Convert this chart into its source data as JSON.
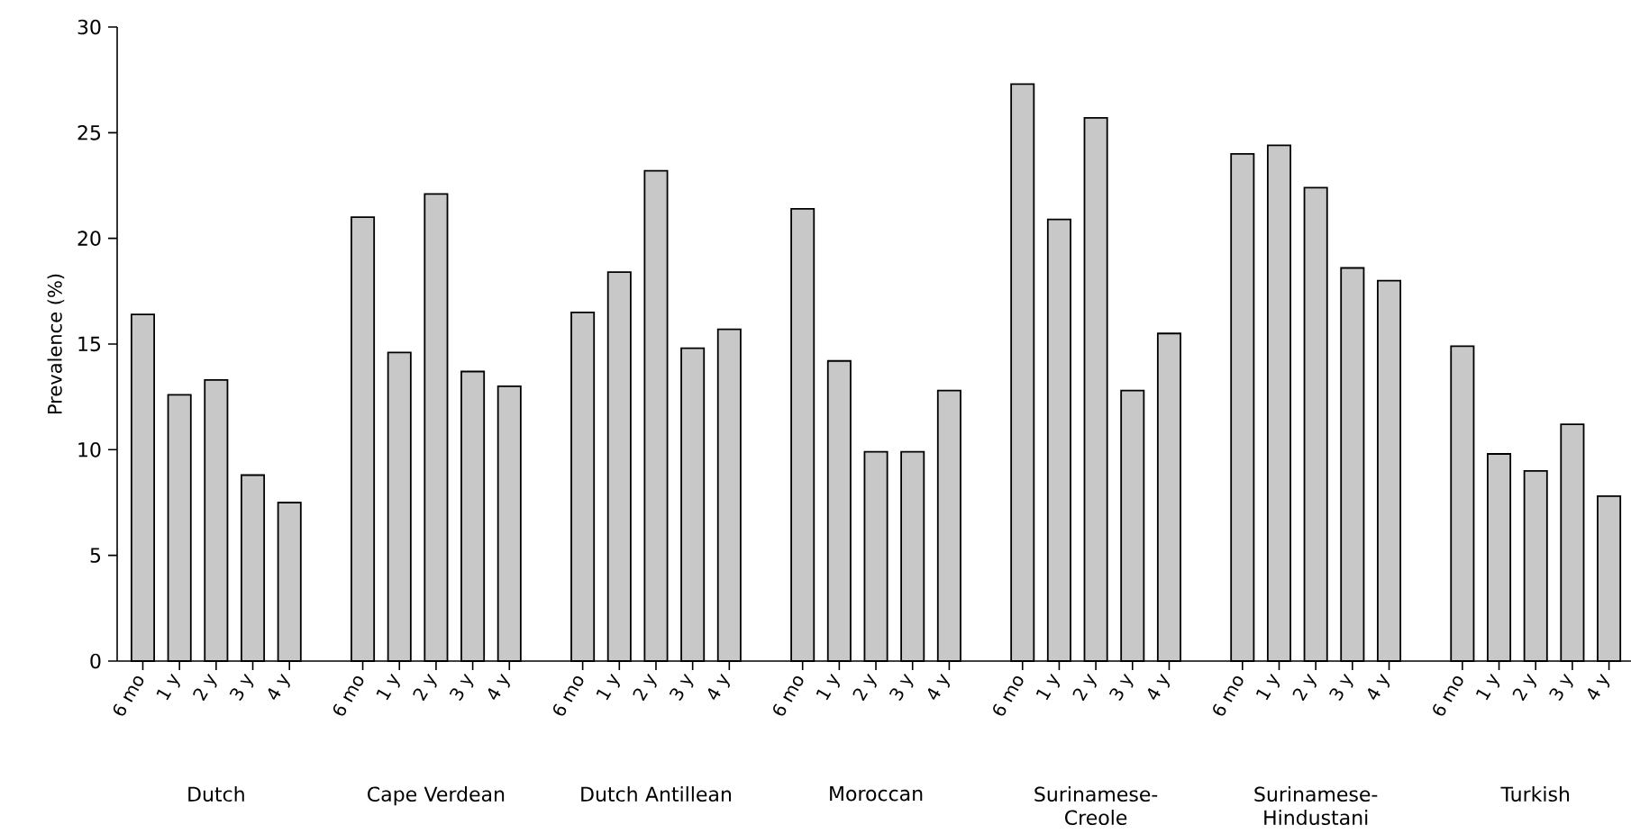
{
  "chart_data": {
    "type": "bar",
    "ylabel": "Prevalence (%)",
    "categories": [
      "6 mo",
      "1 y",
      "2 y",
      "3 y",
      "4 y",
      null,
      "6 mo",
      "1 y",
      "2 y",
      "3 y",
      "4 y",
      null,
      "6 mo",
      "1 y",
      "2 y",
      "3 y",
      "4 y",
      null,
      "6 mo",
      "1 y",
      "2 y",
      "3 y",
      "4 y",
      null,
      "6 mo",
      "1 y",
      "2 y",
      "3 y",
      "4 y",
      null,
      "6 mo",
      "1 y",
      "2 y",
      "3 y",
      "4 y",
      null,
      "6 mo",
      "1 y",
      "2 y",
      "3 y",
      "4 y"
    ],
    "values": [
      16.4,
      12.6,
      13.3,
      8.8,
      7.5,
      null,
      21.0,
      14.6,
      22.1,
      13.7,
      13.0,
      null,
      16.5,
      18.4,
      23.2,
      14.8,
      15.7,
      null,
      21.4,
      14.2,
      9.9,
      9.9,
      12.8,
      null,
      27.3,
      20.9,
      25.7,
      12.8,
      15.5,
      null,
      24.0,
      24.4,
      22.4,
      18.6,
      18.0,
      null,
      14.9,
      9.8,
      9.0,
      11.2,
      7.8
    ],
    "color": "#c8c8c8",
    "ylim": [
      0,
      30
    ],
    "yticks": [
      0,
      5,
      10,
      15,
      20,
      25,
      30
    ],
    "annotations": [
      "Dutch",
      "Cape Verdean",
      "Dutch Antillean",
      "Moroccan",
      "Surinamese-Creole",
      "Surinamese-Hindustani",
      "Turkish"
    ]
  }
}
